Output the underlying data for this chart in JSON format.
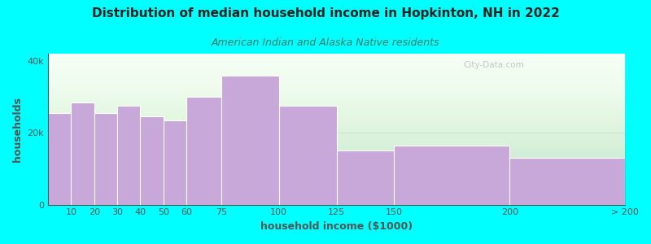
{
  "title": "Distribution of median household income in Hopkinton, NH in 2022",
  "subtitle": "American Indian and Alaska Native residents",
  "xlabel": "household income ($1000)",
  "ylabel": "households",
  "background_outer": "#00FFFF",
  "bar_color": "#c8a8d8",
  "bar_edge_color": "#ffffff",
  "title_fontsize": 11,
  "subtitle_fontsize": 9,
  "label_fontsize": 9,
  "tick_fontsize": 8,
  "title_color": "#222222",
  "subtitle_color": "#3a7a6a",
  "axis_color": "#555555",
  "watermark_text": "City-Data.com",
  "watermark_color": "#bbbbbb",
  "bin_edges": [
    0,
    10,
    20,
    30,
    40,
    50,
    60,
    75,
    100,
    125,
    150,
    200,
    250
  ],
  "values": [
    25500,
    28500,
    25500,
    27500,
    24500,
    23500,
    30000,
    36000,
    27500,
    15000,
    16500,
    13000
  ],
  "xtick_positions": [
    10,
    20,
    30,
    40,
    50,
    60,
    75,
    100,
    125,
    150,
    200,
    250
  ],
  "xtick_labels": [
    "10",
    "20",
    "30",
    "40",
    "50",
    "60",
    "75",
    "100",
    "125",
    "150",
    "200",
    "> 200"
  ],
  "ylim": [
    0,
    42000
  ],
  "yticks": [
    0,
    20000,
    40000
  ],
  "ytick_labels": [
    "0",
    "20k",
    "40k"
  ]
}
